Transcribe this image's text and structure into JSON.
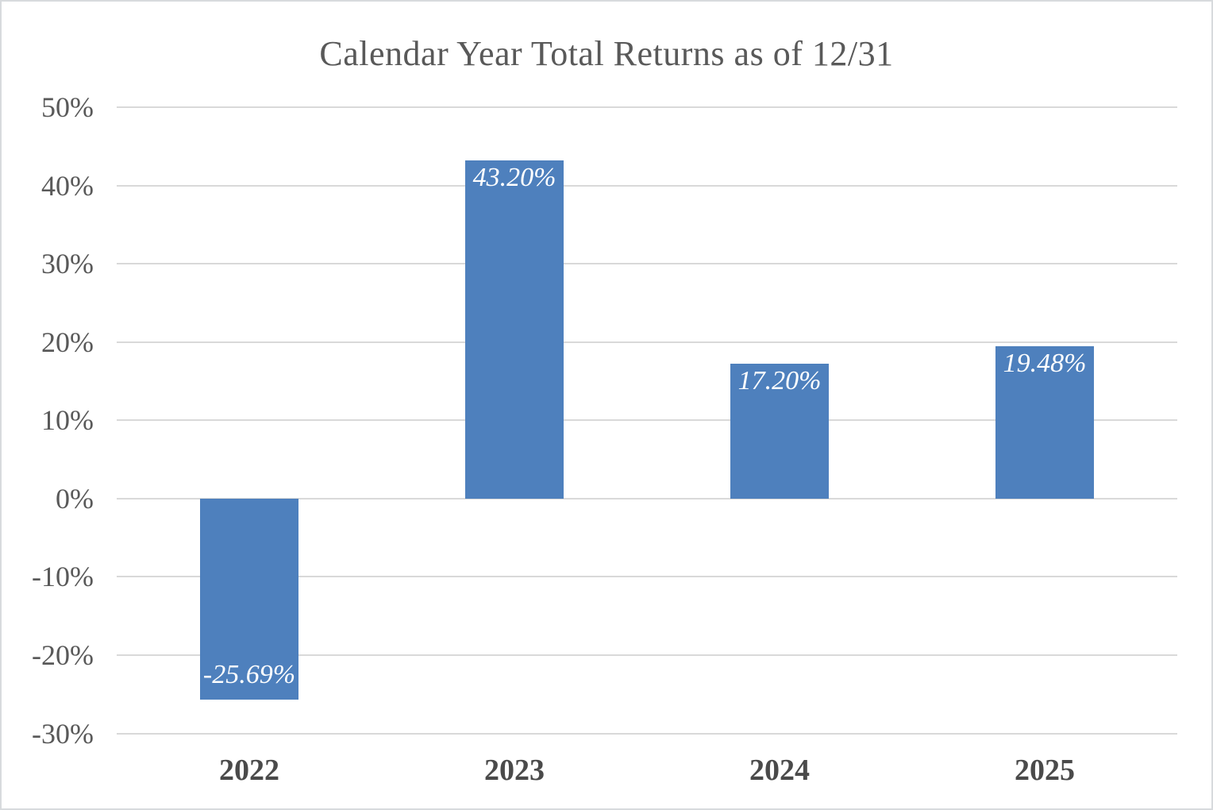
{
  "chart_data": {
    "type": "bar",
    "title": "Calendar Year Total Returns as of 12/31",
    "categories": [
      "2022",
      "2023",
      "2024",
      "2025"
    ],
    "values": [
      -25.69,
      43.2,
      17.2,
      19.48
    ],
    "data_labels": [
      "-25.69%",
      "43.20%",
      "17.20%",
      "19.48%"
    ],
    "xlabel": "",
    "ylabel": "",
    "ylim": [
      -30,
      50
    ],
    "ytick_values": [
      50,
      40,
      30,
      20,
      10,
      0,
      -10,
      -20,
      -30
    ],
    "ytick_labels": [
      "50%",
      "40%",
      "30%",
      "20%",
      "10%",
      "0%",
      "-10%",
      "-20%",
      "-30%"
    ],
    "grid": true,
    "legend_position": "none",
    "bar_color": "#4e80bd",
    "data_label_color": "#ffffff",
    "gridline_color": "#d9d9d9",
    "axis_text_color": "#595959",
    "category_text_color": "#4a4a4a",
    "title_color": "#595959",
    "border_color": "#d7dadd"
  }
}
